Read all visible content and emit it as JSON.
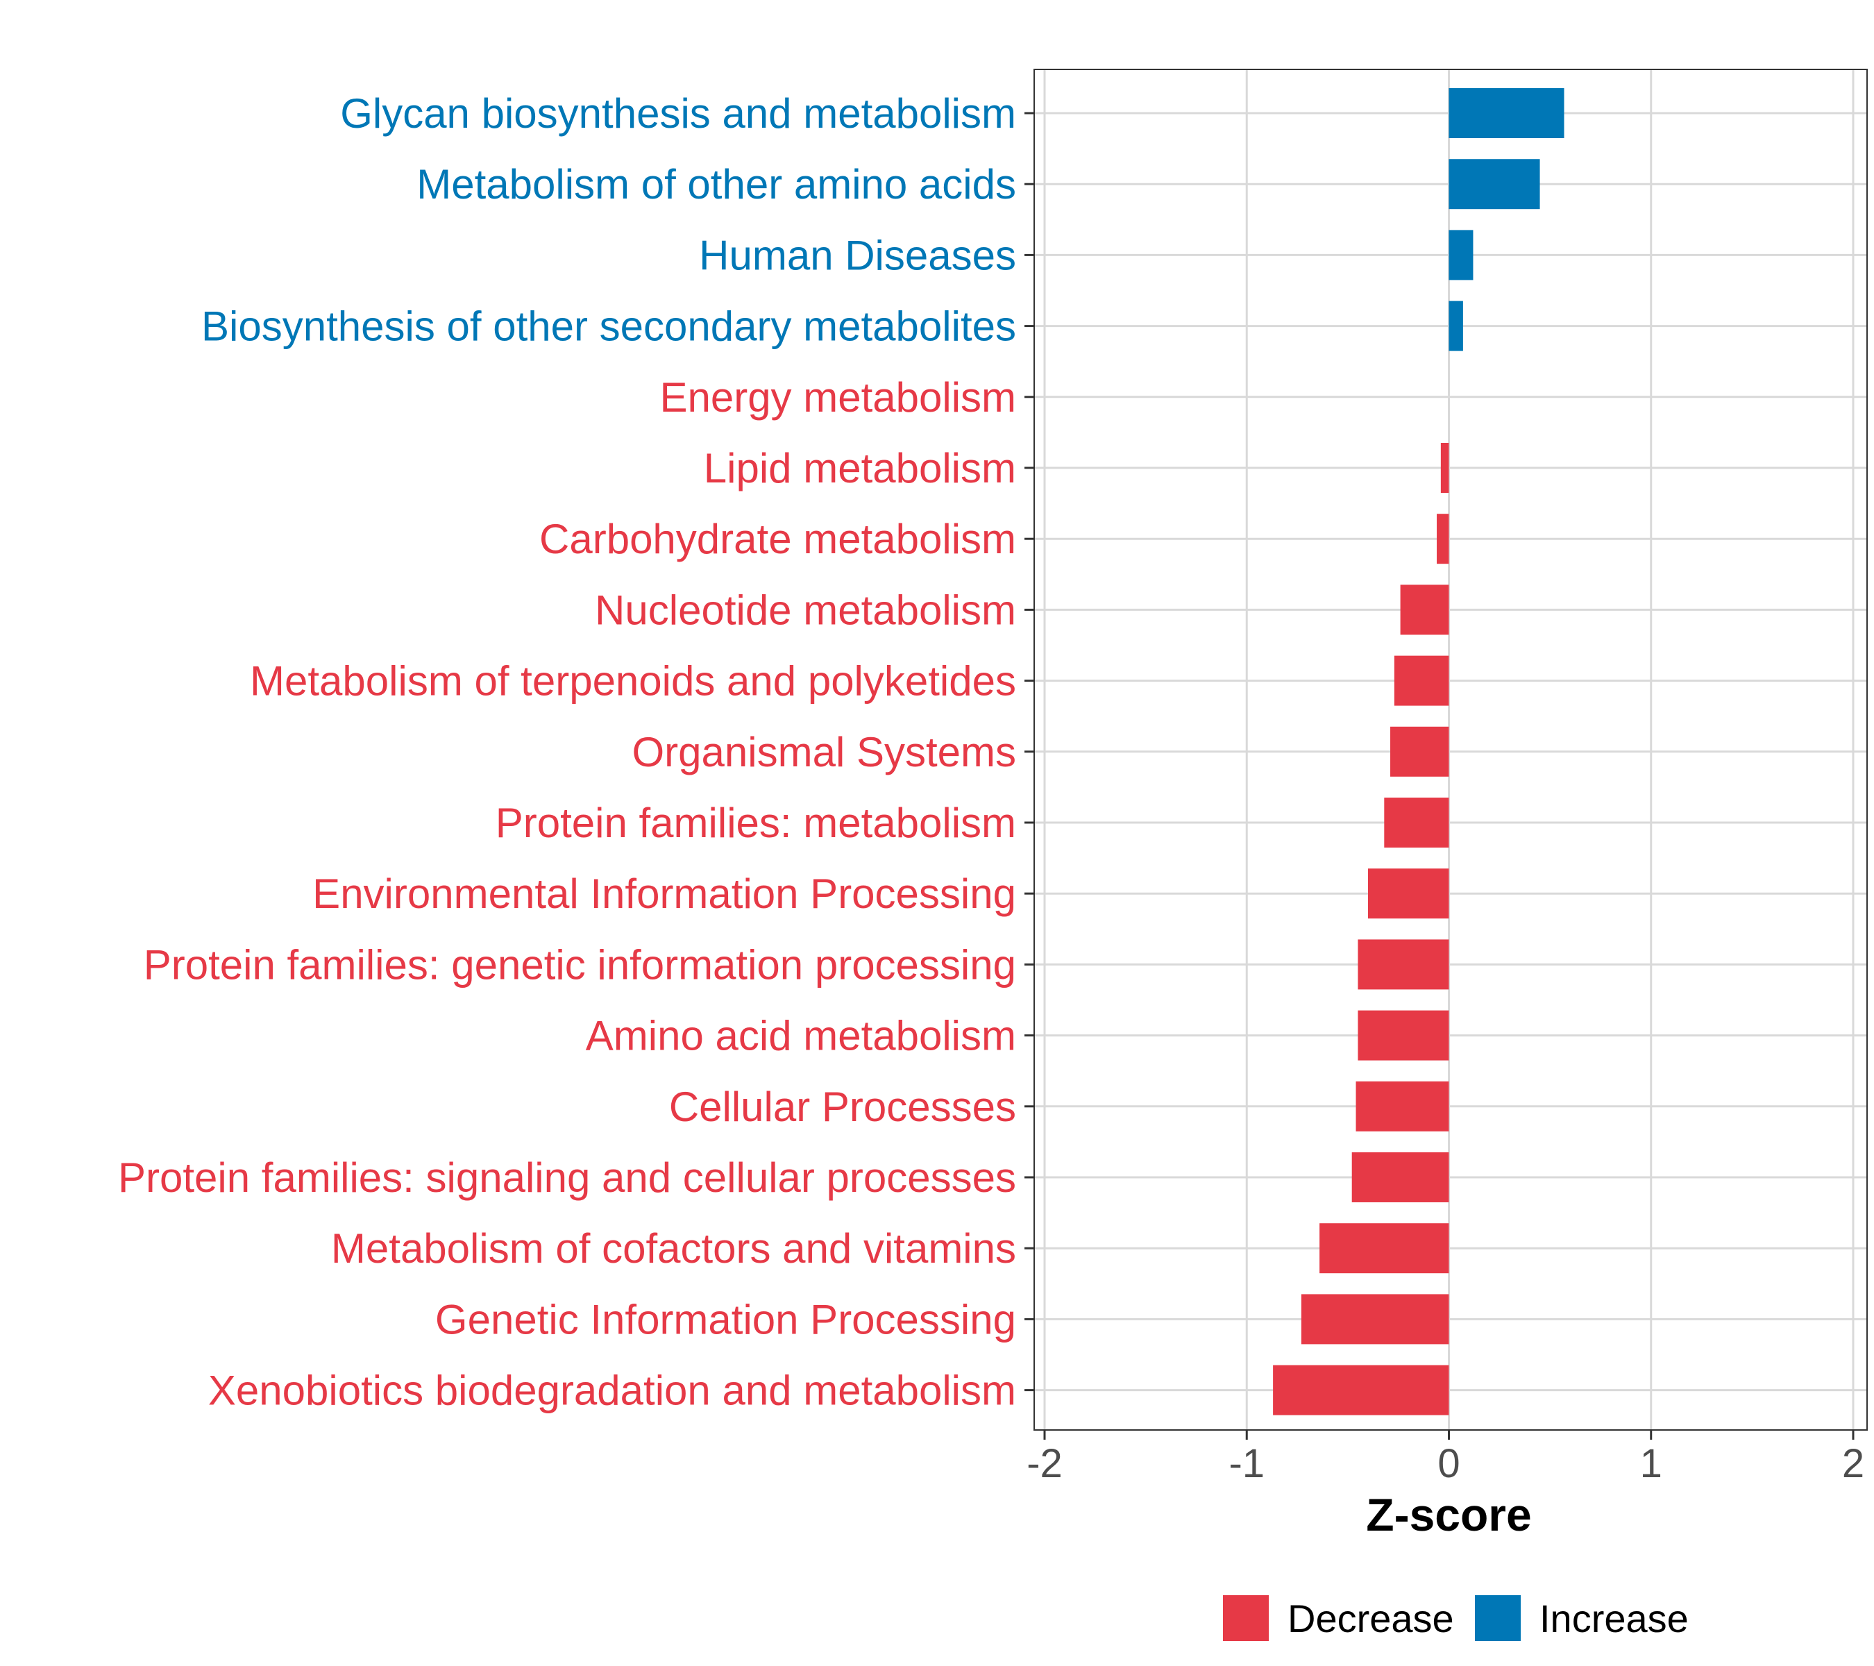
{
  "chart_data": {
    "type": "bar",
    "orientation": "horizontal",
    "title": "",
    "xlabel": "Z-score",
    "ylabel": "",
    "xlim": [
      -2,
      2
    ],
    "xticks": [
      "-2",
      "-1",
      "0",
      "1",
      "2"
    ],
    "grid": true,
    "legend_position": "bottom",
    "legend": [
      {
        "key": "decrease",
        "label": "Decrease",
        "color": "#e63946"
      },
      {
        "key": "increase",
        "label": "Increase",
        "color": "#0077b6"
      }
    ],
    "categories": [
      "Glycan biosynthesis and metabolism",
      "Metabolism of other amino acids",
      "Human Diseases",
      "Biosynthesis of other secondary metabolites",
      "Energy metabolism",
      "Lipid metabolism",
      "Carbohydrate metabolism",
      "Nucleotide metabolism",
      "Metabolism of terpenoids and polyketides",
      "Organismal Systems",
      "Protein families: metabolism",
      "Environmental Information Processing",
      "Protein families: genetic information processing",
      "Amino acid metabolism",
      "Cellular Processes",
      "Protein families: signaling and cellular processes",
      "Metabolism of cofactors and vitamins",
      "Genetic Information Processing",
      "Xenobiotics biodegradation and metabolism"
    ],
    "values": [
      0.57,
      0.45,
      0.12,
      0.07,
      0.0,
      -0.04,
      -0.06,
      -0.24,
      -0.27,
      -0.29,
      -0.32,
      -0.4,
      -0.45,
      -0.45,
      -0.46,
      -0.48,
      -0.64,
      -0.73,
      -0.87
    ],
    "groups": [
      "increase",
      "increase",
      "increase",
      "increase",
      "decrease",
      "decrease",
      "decrease",
      "decrease",
      "decrease",
      "decrease",
      "decrease",
      "decrease",
      "decrease",
      "decrease",
      "decrease",
      "decrease",
      "decrease",
      "decrease",
      "decrease"
    ]
  }
}
